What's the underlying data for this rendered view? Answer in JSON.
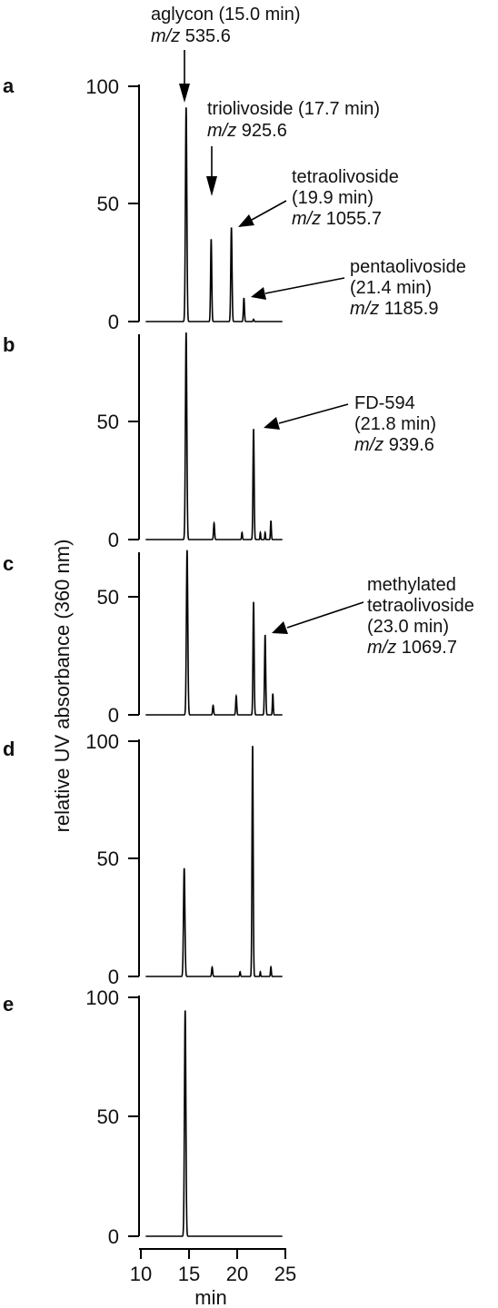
{
  "chart_data": {
    "type": "line",
    "ylabel": "relative UV absorbance (360 nm)",
    "xlabel": "min",
    "xlim": [
      10,
      25
    ],
    "x_ticks": [
      "10",
      "15",
      "20",
      "25"
    ],
    "panels": [
      {
        "letter": "a",
        "ylim": [
          0,
          100
        ],
        "y_ticks": [
          "100",
          "50",
          "0"
        ],
        "peaks": [
          {
            "x": 14.7,
            "y": 91,
            "w": 0.16
          },
          {
            "x": 17.3,
            "y": 35,
            "w": 0.13
          },
          {
            "x": 19.4,
            "y": 40,
            "w": 0.14
          },
          {
            "x": 20.7,
            "y": 10,
            "w": 0.12
          },
          {
            "x": 21.7,
            "y": 1,
            "w": 0.1
          }
        ],
        "annotations": [
          {
            "lines": [
              {
                "pre": "",
                "em": "",
                "post": "aglycon (15.0 min)"
              },
              {
                "pre": "",
                "em": "m/z",
                "post": " 535.6"
              }
            ]
          },
          {
            "lines": [
              {
                "pre": "",
                "em": "",
                "post": "triolivoside (17.7 min)"
              },
              {
                "pre": "",
                "em": "m/z",
                "post": " 925.6"
              }
            ]
          },
          {
            "lines": [
              {
                "pre": "",
                "em": "",
                "post": "tetraolivoside"
              },
              {
                "pre": "",
                "em": "",
                "post": "(19.9 min)"
              },
              {
                "pre": "",
                "em": "m/z",
                "post": " 1055.7"
              }
            ]
          },
          {
            "lines": [
              {
                "pre": "",
                "em": "",
                "post": "pentaolivoside"
              },
              {
                "pre": "",
                "em": "",
                "post": "(21.4 min)"
              },
              {
                "pre": "",
                "em": "m/z",
                "post": " 1185.9"
              }
            ]
          }
        ]
      },
      {
        "letter": "b",
        "ylim": [
          0,
          90
        ],
        "y_ticks": [
          "50",
          "0"
        ],
        "peaks": [
          {
            "x": 14.7,
            "y": 88,
            "w": 0.16
          },
          {
            "x": 17.6,
            "y": 7,
            "w": 0.12
          },
          {
            "x": 20.5,
            "y": 3,
            "w": 0.1
          },
          {
            "x": 21.7,
            "y": 47,
            "w": 0.13
          },
          {
            "x": 22.4,
            "y": 3,
            "w": 0.08
          },
          {
            "x": 22.9,
            "y": 3,
            "w": 0.08
          },
          {
            "x": 23.5,
            "y": 8,
            "w": 0.1
          }
        ],
        "annotations": [
          {
            "lines": [
              {
                "pre": "",
                "em": "",
                "post": "FD-594"
              },
              {
                "pre": "",
                "em": "",
                "post": "(21.8 min)"
              },
              {
                "pre": "",
                "em": "m/z",
                "post": " 939.6"
              }
            ]
          }
        ]
      },
      {
        "letter": "c",
        "ylim": [
          0,
          75
        ],
        "y_ticks": [
          "50",
          "0"
        ],
        "peaks": [
          {
            "x": 14.8,
            "y": 70,
            "w": 0.16
          },
          {
            "x": 17.5,
            "y": 4,
            "w": 0.12
          },
          {
            "x": 19.9,
            "y": 8,
            "w": 0.12
          },
          {
            "x": 21.7,
            "y": 48,
            "w": 0.13
          },
          {
            "x": 22.9,
            "y": 34,
            "w": 0.13
          },
          {
            "x": 23.7,
            "y": 9,
            "w": 0.1
          }
        ],
        "annotations": [
          {
            "lines": [
              {
                "pre": "",
                "em": "",
                "post": "methylated"
              },
              {
                "pre": "",
                "em": "",
                "post": "tetraolivoside"
              },
              {
                "pre": "",
                "em": "",
                "post": "(23.0 min)"
              },
              {
                "pre": "",
                "em": "m/z",
                "post": " 1069.7"
              }
            ]
          }
        ]
      },
      {
        "letter": "d",
        "ylim": [
          0,
          100
        ],
        "y_ticks": [
          "100",
          "50",
          "0"
        ],
        "peaks": [
          {
            "x": 14.5,
            "y": 46,
            "w": 0.16
          },
          {
            "x": 17.4,
            "y": 4,
            "w": 0.12
          },
          {
            "x": 20.3,
            "y": 2,
            "w": 0.1
          },
          {
            "x": 21.6,
            "y": 98,
            "w": 0.13
          },
          {
            "x": 22.4,
            "y": 2,
            "w": 0.08
          },
          {
            "x": 23.5,
            "y": 4,
            "w": 0.1
          }
        ],
        "annotations": []
      },
      {
        "letter": "e",
        "ylim": [
          0,
          100
        ],
        "y_ticks": [
          "100",
          "50",
          "0"
        ],
        "peaks": [
          {
            "x": 14.6,
            "y": 96,
            "w": 0.16
          }
        ],
        "annotations": []
      }
    ]
  }
}
